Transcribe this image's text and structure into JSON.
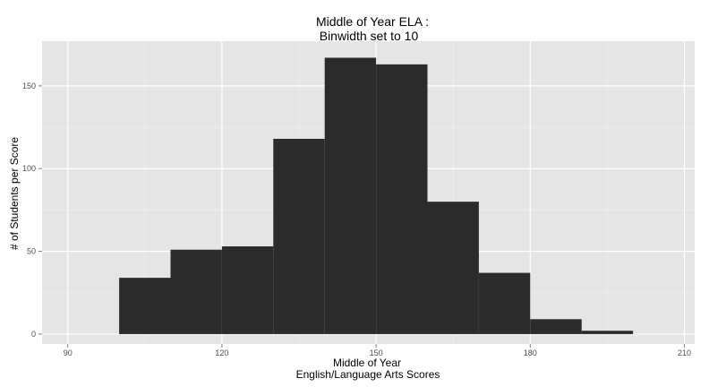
{
  "chart_data": {
    "type": "bar",
    "title": "Middle of Year ELA :",
    "subtitle": "Binwidth set to 10",
    "xlabel": "Middle of Year",
    "xlabel2": "English/Language Arts Scores",
    "ylabel": "# of Students per Score",
    "bin_width": 10,
    "bins": [
      {
        "start": 100,
        "end": 110,
        "count": 34
      },
      {
        "start": 110,
        "end": 120,
        "count": 51
      },
      {
        "start": 120,
        "end": 130,
        "count": 53
      },
      {
        "start": 130,
        "end": 140,
        "count": 118
      },
      {
        "start": 140,
        "end": 150,
        "count": 167
      },
      {
        "start": 150,
        "end": 160,
        "count": 163
      },
      {
        "start": 160,
        "end": 170,
        "count": 80
      },
      {
        "start": 170,
        "end": 180,
        "count": 37
      },
      {
        "start": 180,
        "end": 190,
        "count": 9
      },
      {
        "start": 190,
        "end": 200,
        "count": 2
      }
    ],
    "xlim": [
      85,
      212
    ],
    "ylim": [
      -6,
      177
    ],
    "x_ticks": [
      90,
      120,
      150,
      180,
      210
    ],
    "y_ticks": [
      0,
      50,
      100,
      150
    ],
    "grid": true,
    "colors": {
      "bar": "#2b2b2b",
      "panel": "#e5e5e5",
      "grid_major": "#ffffff",
      "grid_minor": "#f2f2f2"
    }
  }
}
